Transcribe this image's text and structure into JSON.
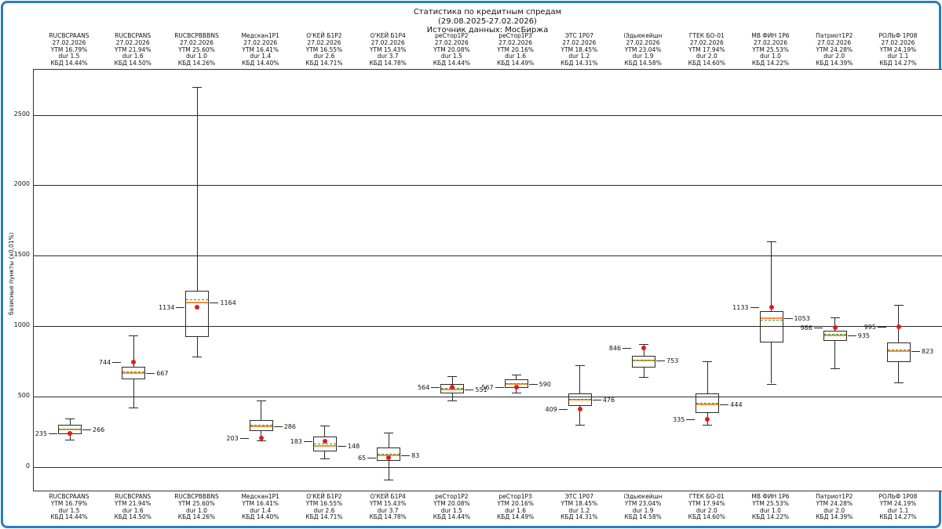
{
  "title": {
    "line1": "Статистика по кредитным спредам",
    "line2": "(29.08.2025-27.02.2026)",
    "line3": "Источник данных: МосБиржа"
  },
  "y_axis": {
    "label": "базисные пункты (х0,01%)"
  },
  "colors": {
    "frame": "#2b7cc0",
    "median": "#ff8c3a",
    "mean": "#2ca02c",
    "current_dot": "#e31a1c",
    "box_stroke": "#2a2a2a"
  },
  "chart_data": {
    "type": "boxplot",
    "title": "Статистика по кредитным спредам",
    "subtitle": "(29.08.2025-27.02.2026)",
    "source": "Источник данных: МосБиржа",
    "ylabel": "базисные пункты (х0,01%)",
    "ylim": [
      -170,
      2820
    ],
    "gridlines": [
      0,
      500,
      1000,
      1500,
      2000,
      2500
    ],
    "legend": "none",
    "series": [
      {
        "name": "RUCBCPAANS",
        "date": "27.02.2026",
        "ytm": "YTM 16.79%",
        "dur": "dur 1.5",
        "kbd": "КБД 14.44%",
        "low": 190,
        "q1": 232,
        "median": 266,
        "q3": 296,
        "high": 340,
        "mean": 263,
        "current": 235,
        "label_left": "235",
        "label_right": "266"
      },
      {
        "name": "RUCBCPANS",
        "date": "27.02.2026",
        "ytm": "YTM 21.94%",
        "dur": "dur 1.6",
        "kbd": "КБД 14.50%",
        "low": 420,
        "q1": 622,
        "median": 667,
        "q3": 712,
        "high": 930,
        "mean": 672,
        "current": 744,
        "label_left": "744",
        "label_right": "667"
      },
      {
        "name": "RUCBCPBBBNS",
        "date": "27.02.2026",
        "ytm": "YTM 25.60%",
        "dur": "dur 1.0",
        "kbd": "КБД 14.26%",
        "low": 780,
        "q1": 920,
        "median": 1164,
        "q3": 1250,
        "high": 2700,
        "mean": 1185,
        "current": 1134,
        "label_left": "1134",
        "label_right": "1164"
      },
      {
        "name": "Медскан1Р1",
        "date": "27.02.2026",
        "ytm": "YTM 16.41%",
        "dur": "dur 1.4",
        "kbd": "КБД 14.40%",
        "low": 185,
        "q1": 252,
        "median": 286,
        "q3": 330,
        "high": 470,
        "mean": 292,
        "current": 203,
        "label_left": "203",
        "label_right": "286"
      },
      {
        "name": "О'КЕЙ Б1Р2",
        "date": "27.02.2026",
        "ytm": "YTM 16.55%",
        "dur": "dur 2.6",
        "kbd": "КБД 14.71%",
        "low": 60,
        "q1": 110,
        "median": 148,
        "q3": 215,
        "high": 290,
        "mean": 160,
        "current": 183,
        "label_left": "183",
        "label_right": "148"
      },
      {
        "name": "О'КЕЙ Б1Р4",
        "date": "27.02.2026",
        "ytm": "YTM 15.43%",
        "dur": "dur 3.7",
        "kbd": "КБД 14.78%",
        "low": -90,
        "q1": 40,
        "median": 83,
        "q3": 135,
        "high": 240,
        "mean": 88,
        "current": 65,
        "label_left": "65",
        "label_right": "83"
      },
      {
        "name": "реСтор1Р2",
        "date": "27.02.2026",
        "ytm": "YTM 20.08%",
        "dur": "dur 1.5",
        "kbd": "КБД 14.44%",
        "low": 470,
        "q1": 522,
        "median": 551,
        "q3": 585,
        "high": 645,
        "mean": 556,
        "current": 564,
        "label_left": "564",
        "label_right": "551"
      },
      {
        "name": "реСтор1Р3",
        "date": "27.02.2026",
        "ytm": "YTM 20.16%",
        "dur": "dur 1.6",
        "kbd": "КБД 14.49%",
        "low": 525,
        "q1": 560,
        "median": 590,
        "q3": 618,
        "high": 655,
        "mean": 589,
        "current": 567,
        "label_left": "567",
        "label_right": "590"
      },
      {
        "name": "ЭТС 1Р07",
        "date": "27.02.2026",
        "ytm": "YTM 18.45%",
        "dur": "dur 1.2",
        "kbd": "КБД 14.31%",
        "low": 300,
        "q1": 432,
        "median": 476,
        "q3": 520,
        "high": 720,
        "mean": 478,
        "current": 409,
        "label_left": "409",
        "label_right": "476"
      },
      {
        "name": "iЭдьюкейшн",
        "date": "27.02.2026",
        "ytm": "YTM 23.04%",
        "dur": "dur 1.9",
        "kbd": "КБД 14.58%",
        "low": 640,
        "q1": 702,
        "median": 753,
        "q3": 790,
        "high": 870,
        "mean": 756,
        "current": 846,
        "label_left": "846",
        "label_right": "753"
      },
      {
        "name": "ГТЕК БО-01",
        "date": "27.02.2026",
        "ytm": "YTM 17.94%",
        "dur": "dur 2.0",
        "kbd": "КБД 14.60%",
        "low": 300,
        "q1": 382,
        "median": 444,
        "q3": 520,
        "high": 750,
        "mean": 448,
        "current": 335,
        "label_left": "335",
        "label_right": "444"
      },
      {
        "name": "МВ ФИН 1Р6",
        "date": "27.02.2026",
        "ytm": "YTM 25.53%",
        "dur": "dur 1.0",
        "kbd": "КБД 14.22%",
        "low": 590,
        "q1": 880,
        "median": 1053,
        "q3": 1105,
        "high": 1600,
        "mean": 1040,
        "current": 1133,
        "label_left": "1133",
        "label_right": "1053"
      },
      {
        "name": "Патриот1Р2",
        "date": "27.02.2026",
        "ytm": "YTM 24.28%",
        "dur": "dur 2.0",
        "kbd": "КБД 14.39%",
        "low": 700,
        "q1": 895,
        "median": 935,
        "q3": 968,
        "high": 1060,
        "mean": 938,
        "current": 986,
        "label_left": "986",
        "label_right": "935"
      },
      {
        "name": "РОЛЬФ 1Р08",
        "date": "27.02.2026",
        "ytm": "YTM 24.19%",
        "dur": "dur 1.1",
        "kbd": "КБД 14.27%",
        "low": 600,
        "q1": 745,
        "median": 823,
        "q3": 880,
        "high": 1150,
        "mean": 826,
        "current": 995,
        "label_left": "995",
        "label_right": "823"
      }
    ]
  }
}
